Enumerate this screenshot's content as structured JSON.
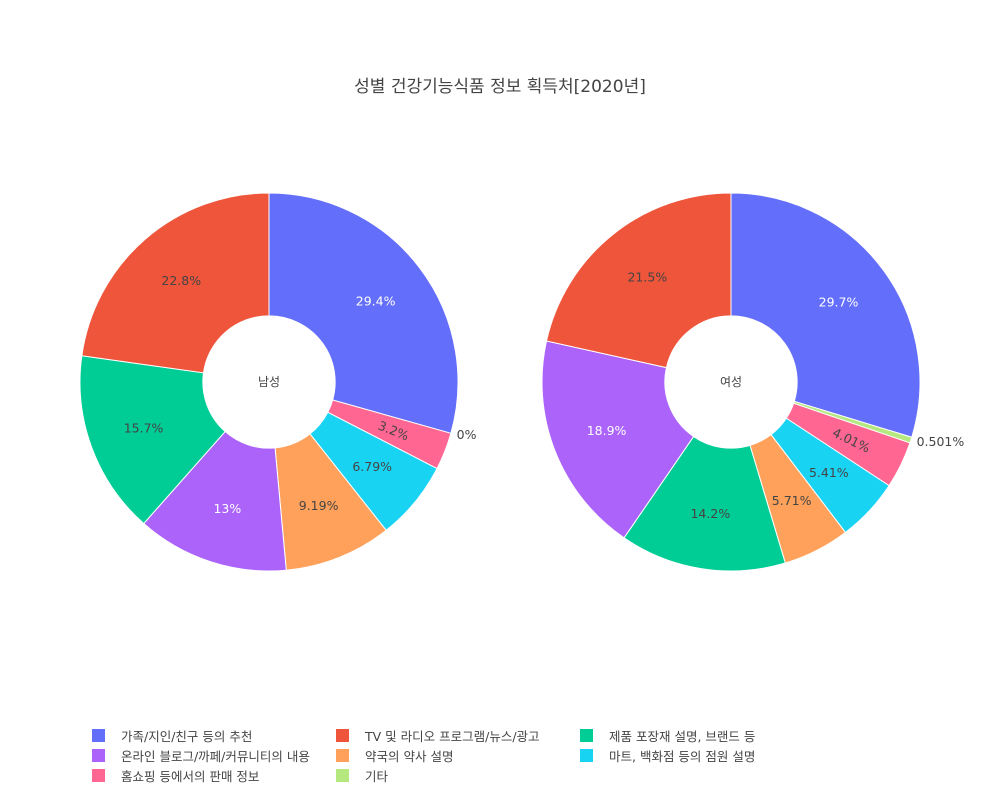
{
  "chart_data": {
    "type": "pie",
    "title": "성별 건강기능식품 정보 획득처[2020년]",
    "categories": [
      "가족/지인/친구 등의 추천",
      "TV 및 라디오 프로그램/뉴스/광고",
      "제품 포장재 설명, 브랜드 등",
      "온라인 블로그/까페/커뮤니티의 내용",
      "약국의 약사 설명",
      "마트, 백화점 등의 점원 설명",
      "홈쇼핑 등에서의 판매 정보",
      "기타"
    ],
    "colors": [
      "#636EFA",
      "#EF553B",
      "#00CC96",
      "#AB63FA",
      "#FFA15A",
      "#19D3F3",
      "#FF6692",
      "#B6E880"
    ],
    "hole": 0.35,
    "series": [
      {
        "name": "남성",
        "values": [
          29.4,
          22.8,
          15.7,
          13,
          9.19,
          6.79,
          3.2,
          0
        ],
        "labels": [
          "29.4%",
          "22.8%",
          "15.7%",
          "13%",
          "9.19%",
          "6.79%",
          "3.2%",
          "0%"
        ]
      },
      {
        "name": "여성",
        "values": [
          29.7,
          21.5,
          14.2,
          18.9,
          5.71,
          5.41,
          4.01,
          0.501
        ],
        "labels": [
          "29.7%",
          "21.5%",
          "14.2%",
          "18.9%",
          "5.71%",
          "5.41%",
          "4.01%",
          "0.501%"
        ]
      }
    ],
    "slice_order": [
      [
        0,
        7,
        6,
        5,
        4,
        3,
        2,
        1
      ],
      [
        0,
        7,
        6,
        5,
        4,
        2,
        3,
        1
      ]
    ],
    "legend_position": "bottom"
  }
}
